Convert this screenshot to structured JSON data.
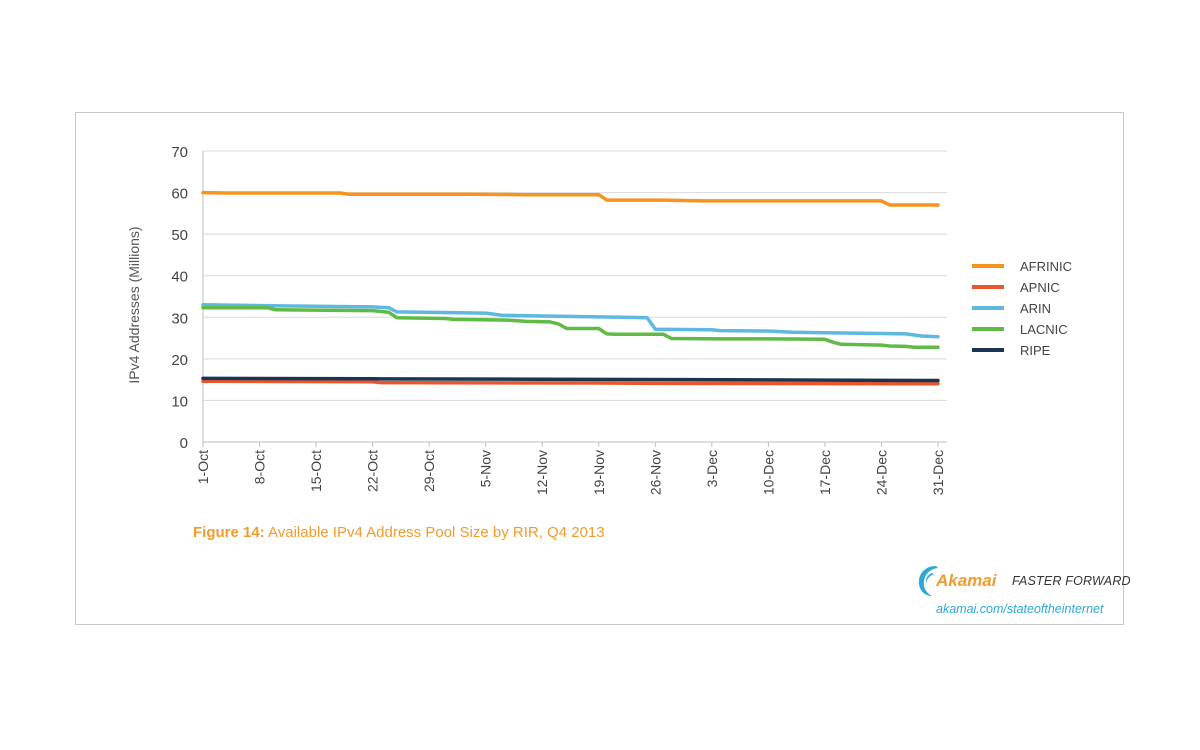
{
  "chart_data": {
    "type": "line",
    "ylabel": "IPv4 Addresses (Millions)",
    "xlabel": "",
    "ylim": [
      0,
      70
    ],
    "yticks": [
      0,
      10,
      20,
      30,
      40,
      50,
      60,
      70
    ],
    "grid": "horizontal",
    "legend_position": "right",
    "x_range": [
      "1-Oct",
      "31-Dec"
    ],
    "xtick_labels": [
      "1-Oct",
      "8-Oct",
      "15-Oct",
      "22-Oct",
      "29-Oct",
      "5-Nov",
      "12-Nov",
      "19-Nov",
      "26-Nov",
      "3-Dec",
      "10-Dec",
      "17-Dec",
      "24-Dec",
      "31-Dec"
    ],
    "series": [
      {
        "name": "AFRINIC",
        "color": "#f7941d",
        "x": [
          "1-Oct",
          "4-Oct",
          "18-Oct",
          "19-Oct",
          "22-Oct",
          "3-Nov",
          "10-Nov",
          "19-Nov",
          "20-Nov",
          "27-Nov",
          "2-Dec",
          "17-Dec",
          "24-Dec",
          "25-Dec",
          "31-Dec"
        ],
        "values": [
          60.0,
          59.9,
          59.9,
          59.6,
          59.6,
          59.6,
          59.5,
          59.5,
          58.2,
          58.2,
          58.0,
          58.0,
          58.0,
          57.0,
          57.0
        ]
      },
      {
        "name": "APNIC",
        "color": "#e8562a",
        "x": [
          "1-Oct",
          "22-Oct",
          "23-Oct",
          "19-Nov",
          "26-Nov",
          "31-Dec"
        ],
        "values": [
          14.6,
          14.5,
          14.3,
          14.2,
          14.1,
          14.0
        ]
      },
      {
        "name": "ARIN",
        "color": "#5fb8e0",
        "x": [
          "1-Oct",
          "8-Oct",
          "22-Oct",
          "24-Oct",
          "25-Oct",
          "5-Nov",
          "7-Nov",
          "12-Nov",
          "19-Nov",
          "22-Nov",
          "25-Nov",
          "26-Nov",
          "3-Dec",
          "4-Dec",
          "10-Dec",
          "13-Dec",
          "17-Dec",
          "24-Dec",
          "27-Dec",
          "29-Dec",
          "31-Dec"
        ],
        "values": [
          33.0,
          32.8,
          32.5,
          32.3,
          31.3,
          31.0,
          30.5,
          30.3,
          30.1,
          30.0,
          29.9,
          27.1,
          27.0,
          26.8,
          26.7,
          26.4,
          26.3,
          26.1,
          26.0,
          25.5,
          25.3
        ]
      },
      {
        "name": "LACNIC",
        "color": "#5fbb46",
        "x": [
          "1-Oct",
          "9-Oct",
          "10-Oct",
          "16-Oct",
          "22-Oct",
          "24-Oct",
          "25-Oct",
          "31-Oct",
          "1-Nov",
          "8-Nov",
          "10-Nov",
          "13-Nov",
          "14-Nov",
          "15-Nov",
          "19-Nov",
          "20-Nov",
          "21-Nov",
          "27-Nov",
          "28-Nov",
          "4-Dec",
          "10-Dec",
          "17-Dec",
          "18-Dec",
          "19-Dec",
          "24-Dec",
          "25-Dec",
          "27-Dec",
          "28-Dec",
          "31-Dec"
        ],
        "values": [
          32.3,
          32.3,
          31.8,
          31.7,
          31.6,
          31.2,
          29.9,
          29.7,
          29.5,
          29.3,
          29.0,
          28.9,
          28.4,
          27.3,
          27.3,
          26.0,
          25.9,
          25.9,
          24.9,
          24.8,
          24.8,
          24.7,
          24.0,
          23.5,
          23.3,
          23.1,
          23.0,
          22.8,
          22.8
        ]
      },
      {
        "name": "RIPE",
        "color": "#1a3552",
        "x": [
          "1-Oct",
          "22-Oct",
          "12-Nov",
          "30-Nov",
          "31-Dec"
        ],
        "values": [
          15.3,
          15.2,
          15.1,
          15.0,
          14.8
        ]
      }
    ]
  },
  "caption": {
    "label": "Figure 14:",
    "text": " Available IPv4 Address Pool Size by RIR, Q4 2013"
  },
  "branding": {
    "name": "Akamai",
    "tagline": "FASTER FORWARD",
    "url": "akamai.com/stateoftheinternet",
    "logo_icon": "akamai-swoosh-icon"
  }
}
